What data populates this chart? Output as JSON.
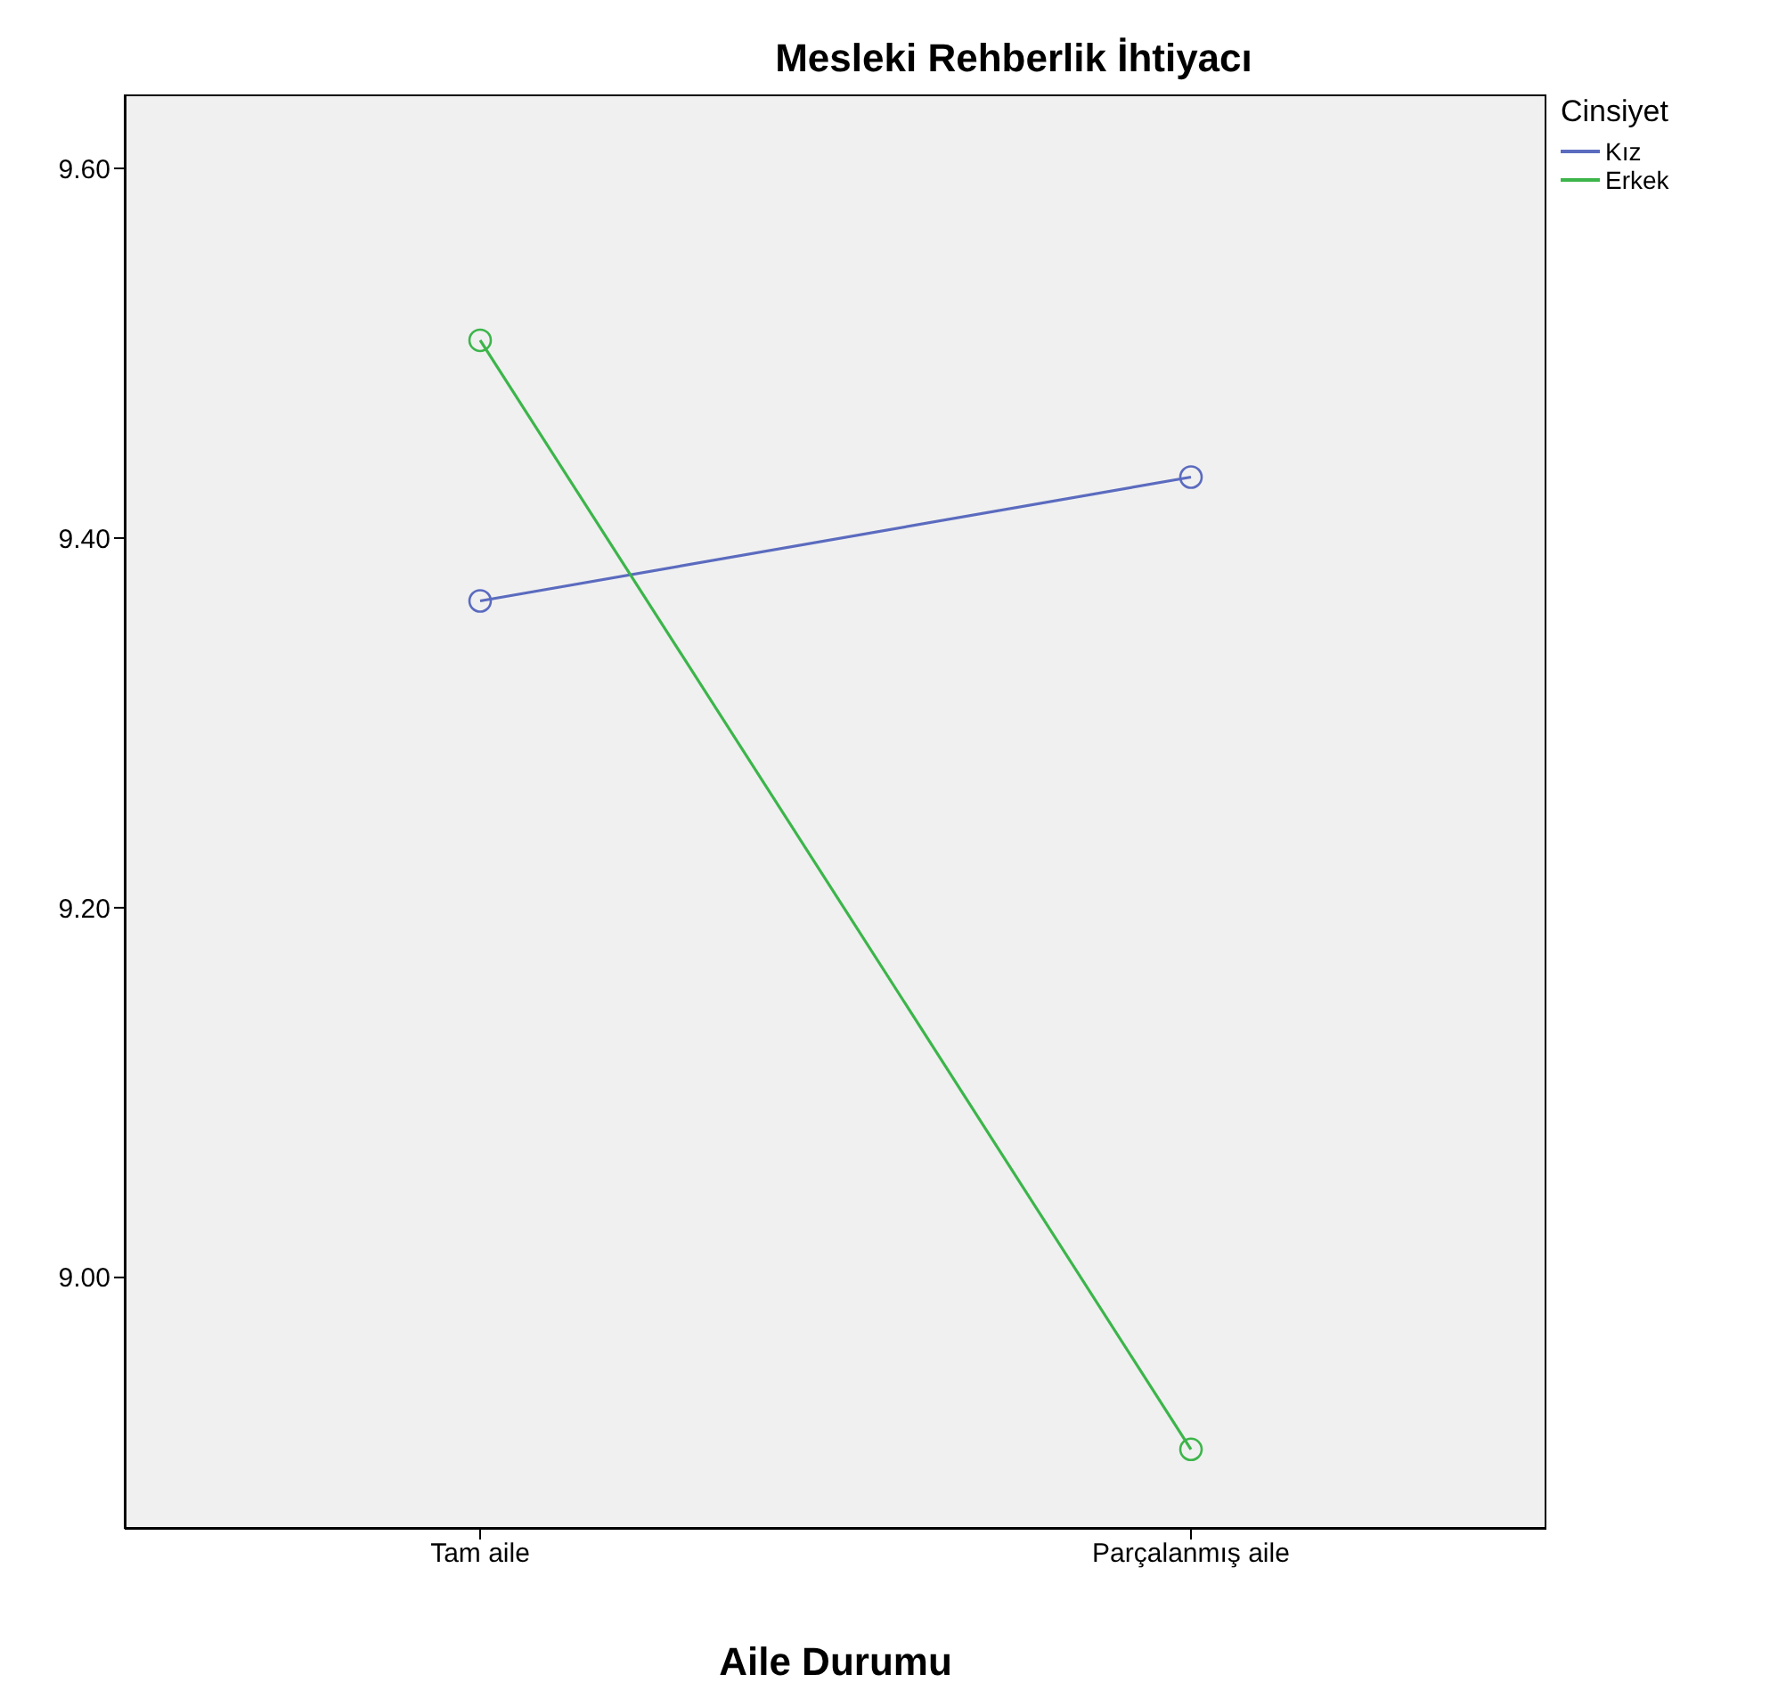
{
  "chart_data": {
    "type": "line",
    "title": "Mesleki Rehberlik İhtiyacı",
    "xlabel": "Aile Durumu",
    "legend_title": "Cinsiyet",
    "categories": [
      "Tam aile",
      "Parçalanmış aile"
    ],
    "series": [
      {
        "name": "Kız",
        "color": "#5b6bbf",
        "values": [
          9.366,
          9.433
        ]
      },
      {
        "name": "Erkek",
        "color": "#3cb54a",
        "values": [
          9.507,
          8.907
        ]
      }
    ],
    "ylim": [
      8.864,
      9.64
    ],
    "yticks": [
      {
        "value": 9.0,
        "label": "9.00"
      },
      {
        "value": 9.2,
        "label": "9.20"
      },
      {
        "value": 9.4,
        "label": "9.40"
      },
      {
        "value": 9.6,
        "label": "9.60"
      }
    ],
    "grid": false,
    "legend": "top right",
    "marker": "circle",
    "line_style": "solid"
  }
}
